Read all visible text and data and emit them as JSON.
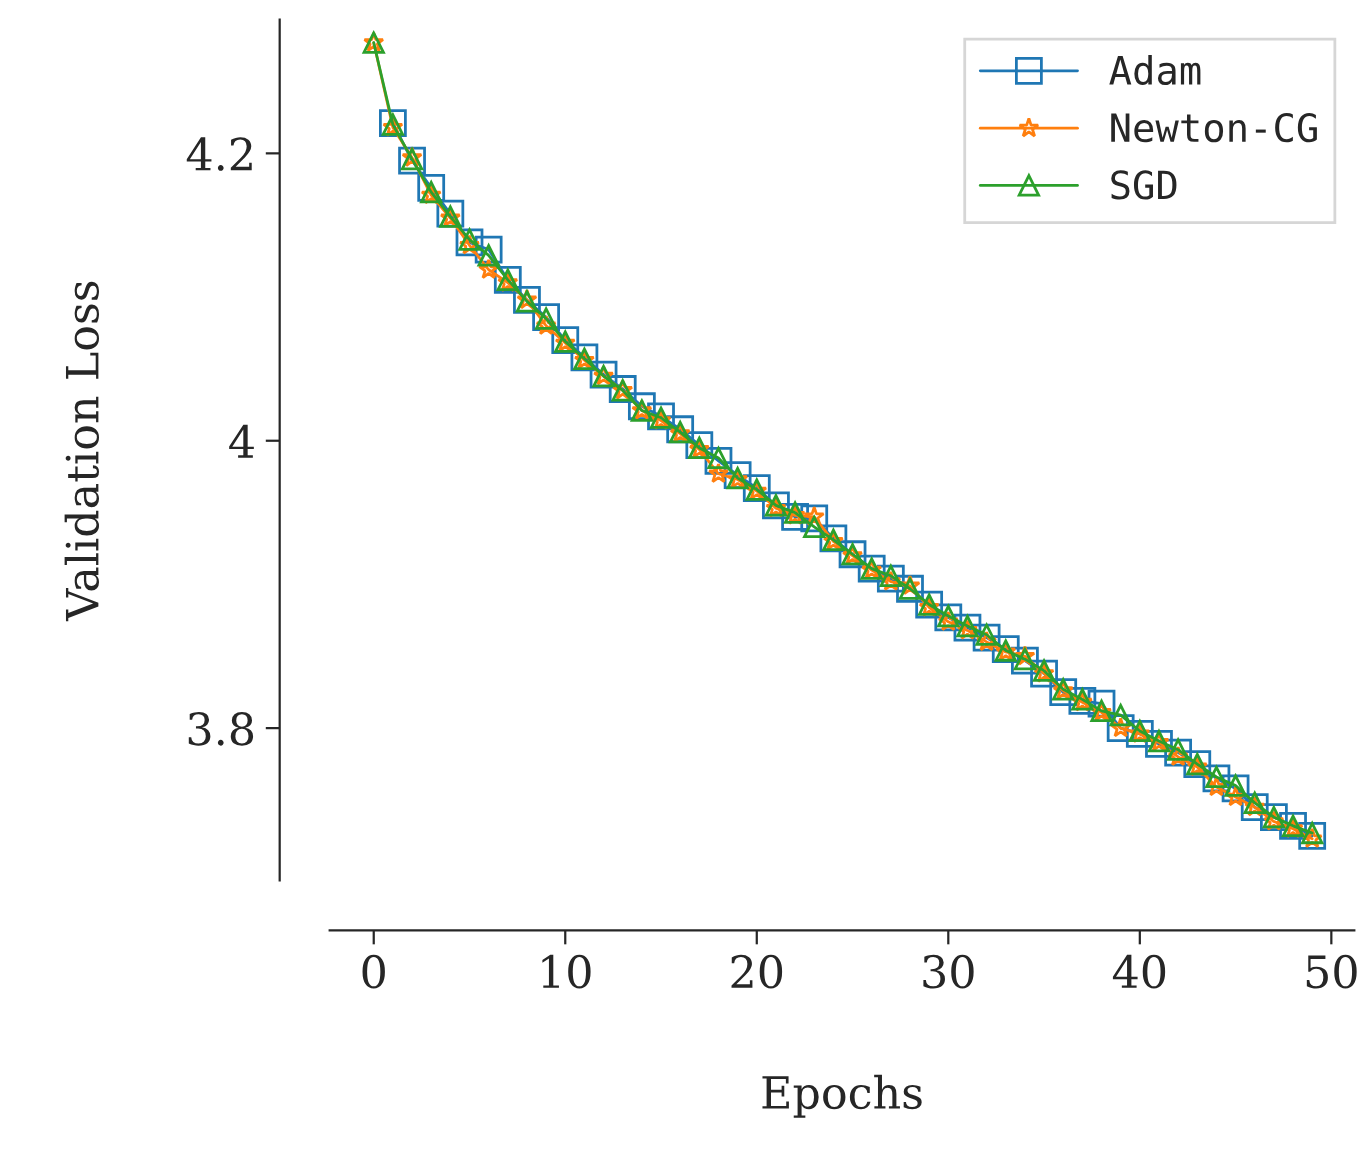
{
  "chart_data": {
    "type": "line",
    "xlabel": "Epochs",
    "ylabel": "Validation Loss",
    "x": [
      0,
      1,
      2,
      3,
      4,
      5,
      6,
      7,
      8,
      9,
      10,
      11,
      12,
      13,
      14,
      15,
      16,
      17,
      18,
      19,
      20,
      21,
      22,
      23,
      24,
      25,
      26,
      27,
      28,
      29,
      30,
      31,
      32,
      33,
      34,
      35,
      36,
      37,
      38,
      39,
      40,
      41,
      42,
      43,
      44,
      45,
      46,
      47,
      48,
      49
    ],
    "series": [
      {
        "name": "Adam",
        "color": "#1f77b4",
        "marker": "square",
        "values": [
          null,
          4.221,
          4.195,
          4.176,
          4.158,
          4.138,
          4.133,
          4.112,
          4.098,
          4.086,
          4.07,
          4.058,
          4.046,
          4.036,
          4.024,
          4.017,
          4.008,
          3.997,
          3.986,
          3.976,
          3.967,
          3.955,
          3.947,
          3.946,
          3.932,
          3.921,
          3.911,
          3.904,
          3.897,
          3.886,
          3.877,
          3.87,
          3.863,
          3.855,
          3.847,
          3.838,
          3.825,
          3.819,
          3.817,
          3.8,
          3.796,
          3.789,
          3.783,
          3.775,
          3.765,
          3.758,
          3.745,
          3.738,
          3.732,
          3.725
        ]
      },
      {
        "name": "Newton-CG",
        "color": "#ff7f0e",
        "marker": "star",
        "values": [
          4.277,
          4.218,
          4.197,
          4.171,
          4.155,
          4.136,
          4.119,
          4.11,
          4.098,
          4.08,
          4.068,
          4.056,
          4.045,
          4.035,
          4.021,
          4.014,
          4.005,
          3.994,
          3.977,
          3.973,
          3.965,
          3.953,
          3.948,
          3.947,
          3.93,
          3.92,
          3.91,
          3.902,
          3.899,
          3.884,
          3.874,
          3.868,
          3.86,
          3.853,
          3.85,
          3.838,
          3.826,
          3.818,
          3.811,
          3.8,
          3.796,
          3.79,
          3.78,
          3.773,
          3.759,
          3.752,
          3.745,
          3.735,
          3.73,
          3.723
        ]
      },
      {
        "name": "SGD",
        "color": "#2ca02c",
        "marker": "triangle",
        "values": [
          4.277,
          4.22,
          4.196,
          4.173,
          4.156,
          4.14,
          4.129,
          4.112,
          4.097,
          4.085,
          4.069,
          4.057,
          4.045,
          4.035,
          4.021,
          4.016,
          4.006,
          3.995,
          3.988,
          3.974,
          3.966,
          3.955,
          3.95,
          3.94,
          3.931,
          3.921,
          3.911,
          3.906,
          3.897,
          3.886,
          3.878,
          3.871,
          3.865,
          3.854,
          3.848,
          3.84,
          3.827,
          3.82,
          3.812,
          3.809,
          3.798,
          3.791,
          3.785,
          3.775,
          3.766,
          3.76,
          3.748,
          3.738,
          3.732,
          3.727
        ]
      }
    ],
    "xlim": [
      -2.3,
      51.2
    ],
    "xticks": [
      0,
      10,
      20,
      30,
      40,
      50
    ],
    "ylim": [
      3.694,
      4.293
    ],
    "yticks": [
      3.8,
      {
        "value": 4.0,
        "label": "4"
      },
      4.2
    ],
    "line_style": "solid",
    "grid": false,
    "legend": "top right"
  }
}
